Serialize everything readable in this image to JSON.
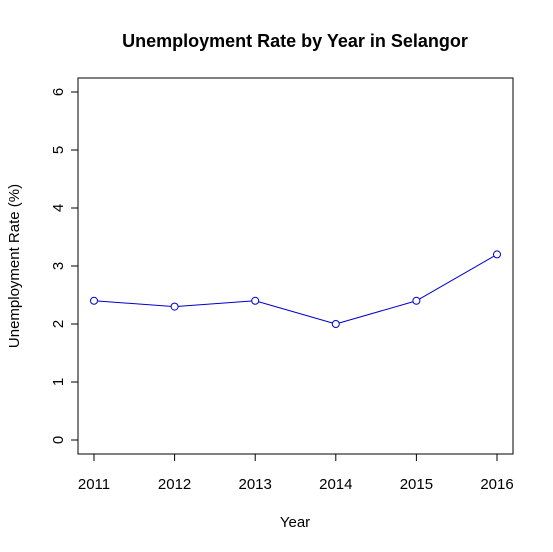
{
  "chart_data": {
    "type": "line",
    "title": "Unemployment Rate by Year in Selangor",
    "xlabel": "Year",
    "ylabel": "Unemployment Rate (%)",
    "x": [
      2011,
      2012,
      2013,
      2014,
      2015,
      2016
    ],
    "x_tick_labels": [
      "2011",
      "2012",
      "2013",
      "2014",
      "2015",
      "2016"
    ],
    "y_ticks": [
      0,
      1,
      2,
      3,
      4,
      5,
      6
    ],
    "y_tick_labels": [
      "0",
      "1",
      "2",
      "3",
      "4",
      "5",
      "6"
    ],
    "series": [
      {
        "values": [
          2.4,
          2.3,
          2.4,
          2.0,
          2.4,
          3.2
        ],
        "color": "#0000cc"
      }
    ],
    "ylim": [
      0,
      6
    ],
    "xlim": [
      2011,
      2016
    ],
    "grid": false,
    "marker": "open-circle"
  }
}
